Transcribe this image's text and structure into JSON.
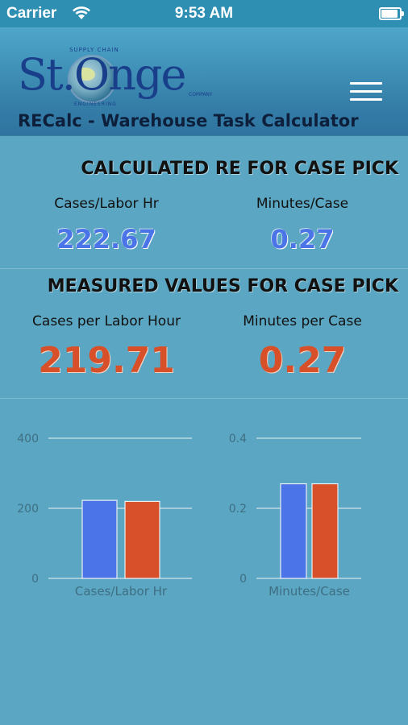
{
  "status_bar": {
    "carrier": "Carrier",
    "time": "9:53 AM",
    "battery_level": 1.0
  },
  "header": {
    "logo": {
      "text": "St.Onge",
      "ring_top": "SUPPLY CHAIN",
      "ring_bottom": "ENGINEERING",
      "small": "COMPANY"
    },
    "app_title": "RECalc - Warehouse Task Calculator",
    "menu_icon": "hamburger-menu-icon"
  },
  "calculated": {
    "title": "CALCULATED RE FOR CASE PICK",
    "cases_label": "Cases/Labor Hr",
    "cases_value": "222.67",
    "minutes_label": "Minutes/Case",
    "minutes_value": "0.27"
  },
  "measured": {
    "title": "MEASURED VALUES FOR CASE PICK",
    "cases_label": "Cases per Labor Hour",
    "cases_value": "219.71",
    "minutes_label": "Minutes per Case",
    "minutes_value": "0.27"
  },
  "colors": {
    "calculated": "#4a74e8",
    "measured": "#d8502a",
    "background": "#5ba6c2"
  },
  "chart_data": [
    {
      "type": "bar",
      "categories": [
        "Cases/Labor Hr"
      ],
      "series": [
        {
          "values": [
            222.67
          ],
          "color": "#4a74e8"
        },
        {
          "values": [
            219.71
          ],
          "color": "#d8502a"
        }
      ],
      "ylim": [
        0,
        400
      ],
      "yticks": [
        "0",
        "200",
        "400"
      ],
      "grid": true
    },
    {
      "type": "bar",
      "categories": [
        "Minutes/Case"
      ],
      "series": [
        {
          "values": [
            0.27
          ],
          "color": "#4a74e8"
        },
        {
          "values": [
            0.27
          ],
          "color": "#d8502a"
        }
      ],
      "ylim": [
        0,
        0.4
      ],
      "yticks": [
        "0",
        "0.2",
        "0.4"
      ],
      "grid": true
    }
  ]
}
